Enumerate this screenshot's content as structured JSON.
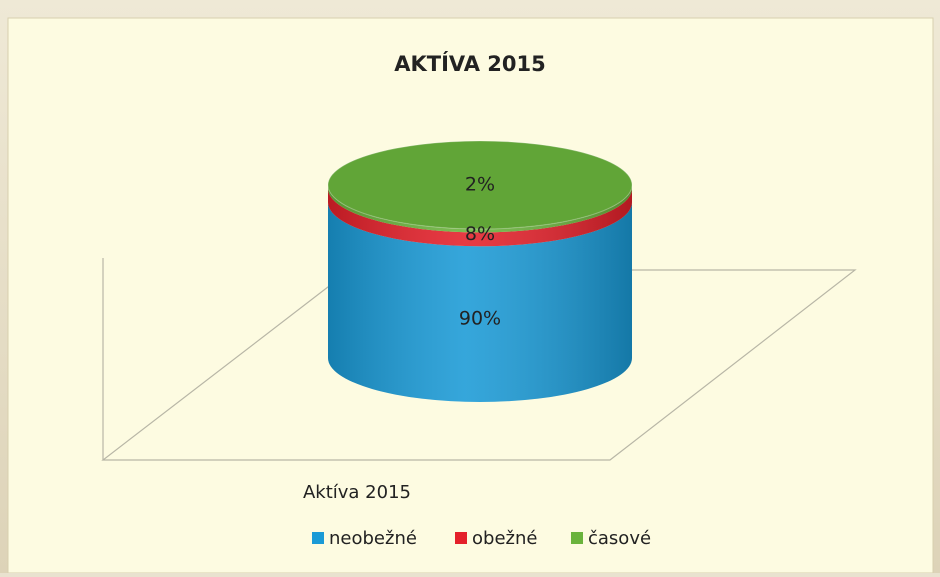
{
  "chart_data": {
    "type": "bar",
    "stacked": true,
    "title": "AKTÍVA 2015",
    "categories": [
      "Aktíva 2015"
    ],
    "series": [
      {
        "name": "neobežné",
        "color": "#1a9ad6",
        "values": [
          90
        ],
        "value_labels": [
          "90%"
        ]
      },
      {
        "name": "obežné",
        "color": "#e4202a",
        "values": [
          8
        ],
        "value_labels": [
          "8%"
        ]
      },
      {
        "name": "časové",
        "color": "#6ab33c",
        "values": [
          2
        ],
        "value_labels": [
          "2%"
        ]
      }
    ],
    "legend": "bottom"
  }
}
